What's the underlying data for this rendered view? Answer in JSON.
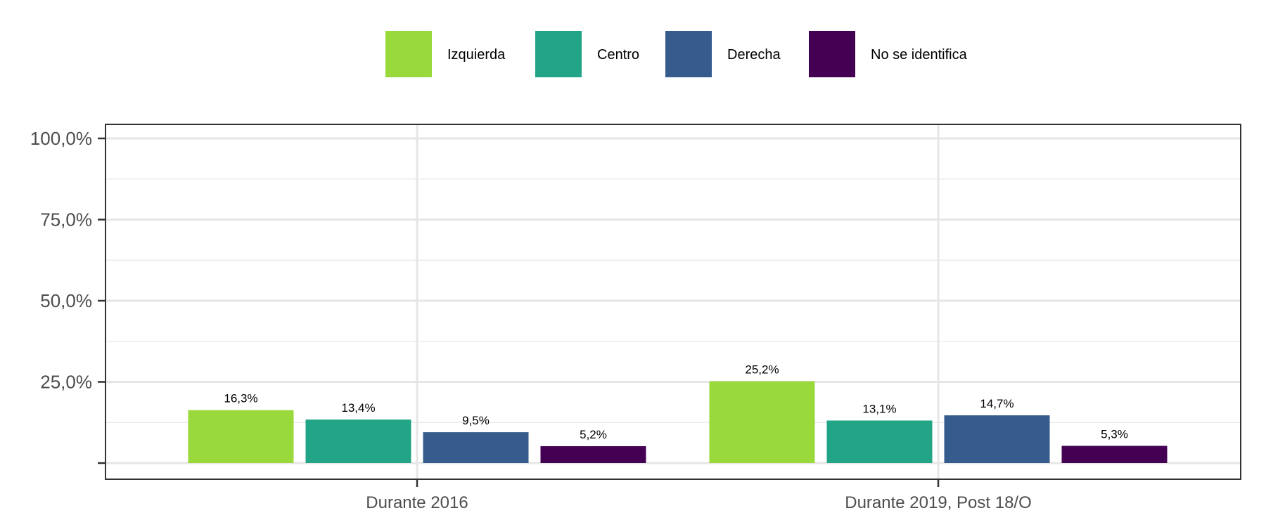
{
  "chart_data": {
    "type": "bar",
    "title": "",
    "xlabel": "",
    "ylabel": "",
    "categories": [
      "Durante 2016",
      "Durante 2019, Post 18/O"
    ],
    "series": [
      {
        "name": "Izquierda",
        "values": [
          16.3,
          25.2
        ],
        "labels": [
          "16,3%",
          "25,2%"
        ],
        "color": "#9ad93c"
      },
      {
        "name": "Centro",
        "values": [
          13.4,
          13.1
        ],
        "labels": [
          "13,4%",
          "13,1%"
        ],
        "color": "#22a486"
      },
      {
        "name": "Derecha",
        "values": [
          9.5,
          14.7
        ],
        "labels": [
          "9,5%",
          "14,7%"
        ],
        "color": "#365c8d"
      },
      {
        "name": "No se identifica",
        "values": [
          5.2,
          5.3
        ],
        "labels": [
          "5,2%",
          "5,3%"
        ],
        "color": "#440154"
      }
    ],
    "ylim": [
      0,
      100
    ],
    "yticks": [
      0,
      25,
      50,
      75,
      100
    ],
    "ytick_labels": [
      "",
      "25,0%",
      "50,0%",
      "75,0%",
      "100,0%"
    ],
    "grid": true,
    "legend_position": "top"
  }
}
